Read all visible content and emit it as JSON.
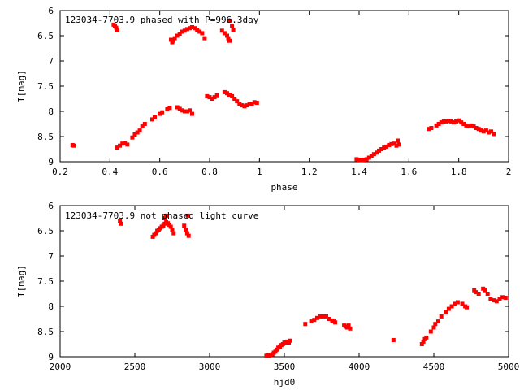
{
  "chart_data": [
    {
      "type": "scatter",
      "title": "123034-7703.9 phased with P=996.3day",
      "xlabel": "phase",
      "ylabel": "I[mag]",
      "xlim": [
        0.2,
        2.0
      ],
      "ylim": [
        9,
        6
      ],
      "y_inverted": true,
      "grid": false,
      "marker_color": "#ff0000",
      "xticks": [
        "0.2",
        "0.4",
        "0.6",
        "0.8",
        "1",
        "1.2",
        "1.4",
        "1.6",
        "1.8",
        "2"
      ],
      "yticks": [
        "6",
        "6.5",
        "7",
        "7.5",
        "8",
        "8.5",
        "9"
      ],
      "series": [
        {
          "points": [
            [
              0.25,
              8.67
            ],
            [
              0.255,
              8.68
            ],
            [
              0.415,
              6.28
            ],
            [
              0.42,
              6.31
            ],
            [
              0.425,
              6.34
            ],
            [
              0.43,
              6.38
            ],
            [
              0.43,
              8.72
            ],
            [
              0.44,
              8.68
            ],
            [
              0.45,
              8.64
            ],
            [
              0.46,
              8.63
            ],
            [
              0.47,
              8.66
            ],
            [
              0.49,
              8.52
            ],
            [
              0.5,
              8.46
            ],
            [
              0.51,
              8.42
            ],
            [
              0.52,
              8.38
            ],
            [
              0.53,
              8.3
            ],
            [
              0.54,
              8.25
            ],
            [
              0.57,
              8.16
            ],
            [
              0.58,
              8.12
            ],
            [
              0.6,
              8.05
            ],
            [
              0.61,
              8.02
            ],
            [
              0.63,
              7.96
            ],
            [
              0.64,
              7.93
            ],
            [
              0.67,
              7.92
            ],
            [
              0.68,
              7.95
            ],
            [
              0.69,
              7.98
            ],
            [
              0.7,
              8.0
            ],
            [
              0.71,
              8.0
            ],
            [
              0.72,
              7.98
            ],
            [
              0.73,
              8.05
            ],
            [
              0.645,
              6.58
            ],
            [
              0.65,
              6.63
            ],
            [
              0.655,
              6.6
            ],
            [
              0.66,
              6.55
            ],
            [
              0.67,
              6.5
            ],
            [
              0.68,
              6.46
            ],
            [
              0.69,
              6.42
            ],
            [
              0.7,
              6.4
            ],
            [
              0.71,
              6.37
            ],
            [
              0.72,
              6.35
            ],
            [
              0.73,
              6.33
            ],
            [
              0.74,
              6.35
            ],
            [
              0.75,
              6.38
            ],
            [
              0.76,
              6.42
            ],
            [
              0.77,
              6.45
            ],
            [
              0.78,
              6.55
            ],
            [
              0.79,
              7.7
            ],
            [
              0.8,
              7.72
            ],
            [
              0.81,
              7.75
            ],
            [
              0.82,
              7.72
            ],
            [
              0.83,
              7.68
            ],
            [
              0.85,
              6.4
            ],
            [
              0.86,
              6.45
            ],
            [
              0.87,
              6.5
            ],
            [
              0.875,
              6.55
            ],
            [
              0.88,
              6.6
            ],
            [
              0.88,
              6.2
            ],
            [
              0.89,
              6.3
            ],
            [
              0.895,
              6.38
            ],
            [
              0.86,
              7.62
            ],
            [
              0.87,
              7.64
            ],
            [
              0.88,
              7.67
            ],
            [
              0.89,
              7.7
            ],
            [
              0.9,
              7.75
            ],
            [
              0.91,
              7.8
            ],
            [
              0.92,
              7.85
            ],
            [
              0.93,
              7.88
            ],
            [
              0.94,
              7.9
            ],
            [
              0.95,
              7.88
            ],
            [
              0.96,
              7.85
            ],
            [
              0.97,
              7.86
            ],
            [
              0.98,
              7.82
            ],
            [
              0.99,
              7.83
            ],
            [
              1.39,
              8.95
            ],
            [
              1.4,
              8.96
            ],
            [
              1.41,
              8.97
            ],
            [
              1.42,
              8.96
            ],
            [
              1.43,
              8.95
            ],
            [
              1.44,
              8.92
            ],
            [
              1.45,
              8.88
            ],
            [
              1.46,
              8.85
            ],
            [
              1.47,
              8.82
            ],
            [
              1.48,
              8.78
            ],
            [
              1.49,
              8.75
            ],
            [
              1.5,
              8.72
            ],
            [
              1.51,
              8.7
            ],
            [
              1.52,
              8.67
            ],
            [
              1.53,
              8.65
            ],
            [
              1.54,
              8.64
            ],
            [
              1.55,
              8.68
            ],
            [
              1.56,
              8.66
            ],
            [
              1.555,
              8.58
            ],
            [
              1.68,
              8.35
            ],
            [
              1.69,
              8.33
            ],
            [
              1.71,
              8.28
            ],
            [
              1.72,
              8.25
            ],
            [
              1.73,
              8.22
            ],
            [
              1.74,
              8.2
            ],
            [
              1.75,
              8.2
            ],
            [
              1.76,
              8.19
            ],
            [
              1.77,
              8.2
            ],
            [
              1.78,
              8.22
            ],
            [
              1.79,
              8.2
            ],
            [
              1.8,
              8.18
            ],
            [
              1.81,
              8.22
            ],
            [
              1.82,
              8.25
            ],
            [
              1.83,
              8.28
            ],
            [
              1.84,
              8.3
            ],
            [
              1.85,
              8.28
            ],
            [
              1.86,
              8.3
            ],
            [
              1.87,
              8.33
            ],
            [
              1.88,
              8.35
            ],
            [
              1.89,
              8.38
            ],
            [
              1.9,
              8.4
            ],
            [
              1.91,
              8.38
            ],
            [
              1.92,
              8.42
            ],
            [
              1.93,
              8.4
            ],
            [
              1.94,
              8.45
            ]
          ]
        }
      ]
    },
    {
      "type": "scatter",
      "title": "123034-7703.9 not phased light curve",
      "xlabel": "hjd0",
      "ylabel": "I[mag]",
      "xlim": [
        2000,
        5000
      ],
      "ylim": [
        9,
        6
      ],
      "y_inverted": true,
      "grid": false,
      "marker_color": "#ff0000",
      "xticks": [
        "2000",
        "2500",
        "3000",
        "3500",
        "4000",
        "4500",
        "5000"
      ],
      "yticks": [
        "6",
        "6.5",
        "7",
        "7.5",
        "8",
        "8.5",
        "9"
      ],
      "series": [
        {
          "points": [
            [
              2400,
              6.3
            ],
            [
              2405,
              6.36
            ],
            [
              2620,
              6.62
            ],
            [
              2630,
              6.58
            ],
            [
              2640,
              6.55
            ],
            [
              2650,
              6.5
            ],
            [
              2660,
              6.48
            ],
            [
              2670,
              6.45
            ],
            [
              2680,
              6.42
            ],
            [
              2690,
              6.4
            ],
            [
              2700,
              6.36
            ],
            [
              2710,
              6.33
            ],
            [
              2720,
              6.35
            ],
            [
              2730,
              6.38
            ],
            [
              2740,
              6.42
            ],
            [
              2750,
              6.48
            ],
            [
              2760,
              6.55
            ],
            [
              2700,
              6.25
            ],
            [
              2710,
              6.2
            ],
            [
              2830,
              6.4
            ],
            [
              2840,
              6.48
            ],
            [
              2850,
              6.55
            ],
            [
              2860,
              6.6
            ],
            [
              2855,
              6.2
            ],
            [
              3380,
              8.98
            ],
            [
              3390,
              8.97
            ],
            [
              3400,
              8.98
            ],
            [
              3410,
              8.96
            ],
            [
              3420,
              8.95
            ],
            [
              3430,
              8.92
            ],
            [
              3440,
              8.9
            ],
            [
              3450,
              8.86
            ],
            [
              3460,
              8.82
            ],
            [
              3470,
              8.8
            ],
            [
              3480,
              8.77
            ],
            [
              3490,
              8.75
            ],
            [
              3500,
              8.72
            ],
            [
              3510,
              8.72
            ],
            [
              3520,
              8.7
            ],
            [
              3530,
              8.72
            ],
            [
              3540,
              8.68
            ],
            [
              3640,
              8.35
            ],
            [
              3680,
              8.3
            ],
            [
              3700,
              8.27
            ],
            [
              3720,
              8.23
            ],
            [
              3740,
              8.2
            ],
            [
              3760,
              8.2
            ],
            [
              3780,
              8.2
            ],
            [
              3800,
              8.25
            ],
            [
              3820,
              8.28
            ],
            [
              3830,
              8.3
            ],
            [
              3840,
              8.32
            ],
            [
              3900,
              8.38
            ],
            [
              3910,
              8.4
            ],
            [
              3920,
              8.42
            ],
            [
              3930,
              8.38
            ],
            [
              3940,
              8.44
            ],
            [
              4230,
              8.67
            ],
            [
              4420,
              8.75
            ],
            [
              4430,
              8.7
            ],
            [
              4440,
              8.65
            ],
            [
              4450,
              8.62
            ],
            [
              4480,
              8.5
            ],
            [
              4500,
              8.42
            ],
            [
              4510,
              8.35
            ],
            [
              4530,
              8.3
            ],
            [
              4550,
              8.2
            ],
            [
              4580,
              8.12
            ],
            [
              4600,
              8.05
            ],
            [
              4620,
              8.0
            ],
            [
              4640,
              7.95
            ],
            [
              4660,
              7.92
            ],
            [
              4690,
              7.95
            ],
            [
              4710,
              8.0
            ],
            [
              4720,
              8.02
            ],
            [
              4770,
              7.68
            ],
            [
              4780,
              7.72
            ],
            [
              4800,
              7.75
            ],
            [
              4830,
              7.65
            ],
            [
              4840,
              7.68
            ],
            [
              4860,
              7.75
            ],
            [
              4880,
              7.85
            ],
            [
              4900,
              7.88
            ],
            [
              4920,
              7.9
            ],
            [
              4940,
              7.85
            ],
            [
              4960,
              7.82
            ],
            [
              4980,
              7.83
            ]
          ]
        }
      ]
    }
  ]
}
